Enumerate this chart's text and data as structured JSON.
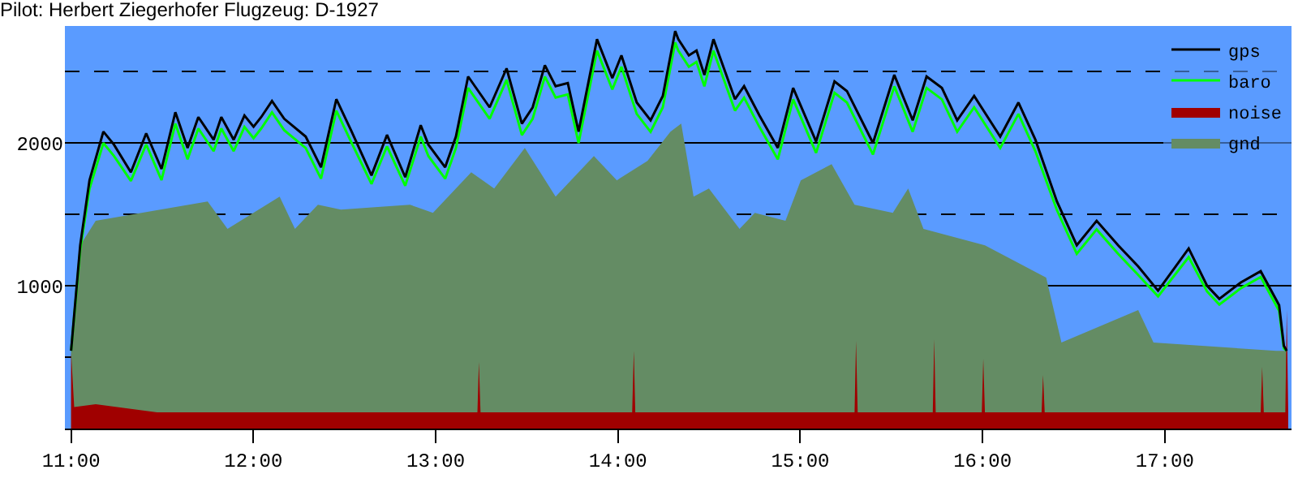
{
  "chart_data": {
    "type": "line",
    "title": "Pilot: Herbert Ziegerhofer Flugzeug: D-1927",
    "xlim": [
      10.966,
      17.695
    ],
    "ylim": [
      0,
      2820
    ],
    "xticks": [
      {
        "value": 11,
        "label": "11:00"
      },
      {
        "value": 12,
        "label": "12:00"
      },
      {
        "value": 13,
        "label": "13:00"
      },
      {
        "value": 14,
        "label": "14:00"
      },
      {
        "value": 15,
        "label": "15:00"
      },
      {
        "value": 16,
        "label": "16:00"
      },
      {
        "value": 17,
        "label": "17:00"
      }
    ],
    "yticks": [
      {
        "value": 500,
        "label": null
      },
      1000,
      {
        "value": 1500,
        "label": null
      },
      2000,
      {
        "value": 2500,
        "label": null
      }
    ],
    "grid": "y",
    "legend": "top right",
    "marker": "none",
    "line_style": "solid",
    "series": [
      {
        "name": "gnd",
        "type": "area",
        "color": "#648c64",
        "x": [
          11.0,
          11.05,
          11.135,
          11.749,
          11.858,
          12.144,
          12.228,
          12.354,
          12.48,
          12.859,
          12.985,
          13.195,
          13.321,
          13.489,
          13.658,
          13.868,
          13.994,
          14.162,
          14.288,
          14.347,
          14.415,
          14.499,
          14.667,
          14.751,
          14.919,
          15.003,
          15.172,
          15.298,
          15.508,
          15.592,
          15.676,
          16.013,
          16.349,
          16.433,
          16.854,
          16.938,
          17.611,
          17.669
        ],
        "values": [
          545,
          1284,
          1455,
          1591,
          1398,
          1625,
          1398,
          1568,
          1534,
          1568,
          1511,
          1795,
          1682,
          1966,
          1625,
          1909,
          1739,
          1875,
          2080,
          2136,
          1625,
          1682,
          1398,
          1511,
          1455,
          1739,
          1852,
          1568,
          1511,
          1682,
          1398,
          1284,
          1057,
          602,
          830,
          602,
          545,
          545
        ]
      },
      {
        "name": "noise",
        "type": "area",
        "color": "#a00000",
        "x": [
          11.0,
          11.017,
          11.135,
          11.471,
          13.229,
          13.237,
          13.246,
          14.078,
          14.087,
          14.095,
          15.298,
          15.306,
          15.315,
          15.727,
          15.735,
          15.743,
          15.996,
          16.004,
          16.013,
          16.324,
          16.332,
          16.341,
          17.526,
          17.534,
          17.543,
          17.661,
          17.669,
          17.677
        ],
        "values": [
          534,
          150,
          170,
          114,
          114,
          466,
          114,
          114,
          545,
          114,
          114,
          614,
          114,
          114,
          625,
          114,
          114,
          489,
          114,
          114,
          375,
          114,
          114,
          432,
          114,
          114,
          830,
          114
        ]
      },
      {
        "name": "baro",
        "color": "#00ff00",
        "x": [
          11.0,
          11.05,
          11.101,
          11.177,
          11.235,
          11.328,
          11.412,
          11.496,
          11.572,
          11.639,
          11.698,
          11.782,
          11.824,
          11.892,
          11.951,
          12.001,
          12.043,
          12.102,
          12.169,
          12.287,
          12.371,
          12.455,
          12.539,
          12.648,
          12.733,
          12.833,
          12.918,
          12.96,
          13.052,
          13.111,
          13.178,
          13.296,
          13.389,
          13.473,
          13.532,
          13.599,
          13.658,
          13.725,
          13.784,
          13.885,
          13.969,
          14.019,
          14.103,
          14.179,
          14.246,
          14.314,
          14.331,
          14.389,
          14.431,
          14.474,
          14.524,
          14.642,
          14.692,
          14.776,
          14.877,
          14.961,
          15.087,
          15.188,
          15.256,
          15.399,
          15.516,
          15.617,
          15.693,
          15.777,
          15.861,
          15.954,
          16.097,
          16.197,
          16.29,
          16.408,
          16.517,
          16.626,
          16.744,
          16.854,
          16.963,
          17.131,
          17.232,
          17.299,
          17.417,
          17.526,
          17.627,
          17.653,
          17.669
        ],
        "values": [
          545,
          1250,
          1680,
          2000,
          1910,
          1735,
          1990,
          1740,
          2136,
          1886,
          2102,
          1943,
          2102,
          1943,
          2113,
          2034,
          2102,
          2215,
          2090,
          1965,
          1750,
          2227,
          2000,
          1713,
          1977,
          1701,
          2045,
          1909,
          1750,
          1965,
          2386,
          2170,
          2443,
          2056,
          2170,
          2465,
          2318,
          2340,
          2000,
          2647,
          2375,
          2534,
          2204,
          2079,
          2250,
          2704,
          2647,
          2534,
          2568,
          2397,
          2647,
          2227,
          2318,
          2113,
          1886,
          2306,
          1931,
          2352,
          2284,
          1920,
          2397,
          2079,
          2386,
          2306,
          2079,
          2250,
          1965,
          2204,
          1943,
          1531,
          1224,
          1395,
          1224,
          1076,
          926,
          1201,
          960,
          869,
          983,
          1062,
          824,
          560,
          545
        ]
      },
      {
        "name": "gps",
        "color": "#000000",
        "x": [
          11.0,
          11.05,
          11.101,
          11.177,
          11.235,
          11.328,
          11.412,
          11.496,
          11.572,
          11.639,
          11.698,
          11.782,
          11.824,
          11.892,
          11.951,
          12.001,
          12.043,
          12.102,
          12.169,
          12.287,
          12.371,
          12.455,
          12.539,
          12.648,
          12.733,
          12.833,
          12.918,
          12.96,
          13.052,
          13.111,
          13.178,
          13.296,
          13.389,
          13.473,
          13.532,
          13.599,
          13.658,
          13.725,
          13.784,
          13.885,
          13.969,
          14.019,
          14.103,
          14.179,
          14.246,
          14.314,
          14.331,
          14.389,
          14.431,
          14.474,
          14.524,
          14.642,
          14.692,
          14.776,
          14.877,
          14.961,
          15.087,
          15.188,
          15.256,
          15.399,
          15.516,
          15.617,
          15.693,
          15.777,
          15.861,
          15.954,
          16.097,
          16.197,
          16.29,
          16.408,
          16.517,
          16.626,
          16.744,
          16.854,
          16.963,
          17.131,
          17.232,
          17.299,
          17.417,
          17.526,
          17.627,
          17.653,
          17.669
        ],
        "values": [
          545,
          1284,
          1739,
          2080,
          1989,
          1795,
          2068,
          1818,
          2216,
          1966,
          2182,
          2023,
          2182,
          2023,
          2193,
          2114,
          2182,
          2295,
          2170,
          2045,
          1830,
          2307,
          2080,
          1773,
          2057,
          1761,
          2125,
          1989,
          1830,
          2045,
          2466,
          2250,
          2523,
          2136,
          2250,
          2545,
          2398,
          2420,
          2080,
          2727,
          2455,
          2614,
          2284,
          2159,
          2330,
          2784,
          2727,
          2614,
          2648,
          2477,
          2727,
          2307,
          2398,
          2193,
          1966,
          2386,
          2011,
          2432,
          2364,
          2000,
          2477,
          2159,
          2466,
          2386,
          2159,
          2330,
          2045,
          2284,
          2023,
          1591,
          1284,
          1455,
          1284,
          1136,
          966,
          1261,
          1000,
          909,
          1023,
          1102,
          864,
          580,
          545
        ]
      }
    ]
  }
}
